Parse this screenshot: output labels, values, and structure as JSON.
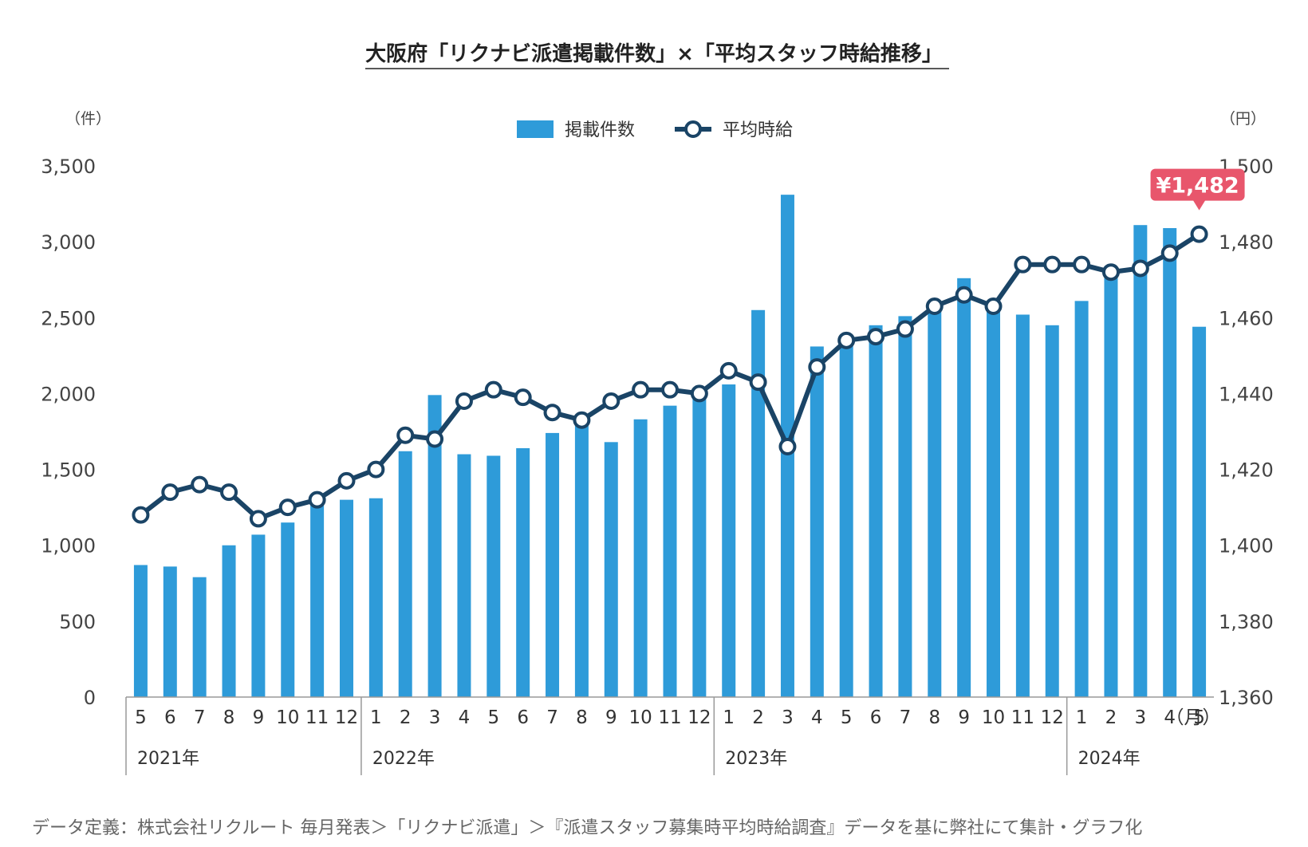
{
  "title": "大阪府「リクナビ派遣掲載件数」×「平均スタッフ時給推移」",
  "footnote": "データ定義：株式会社リクルート 毎月発表＞「リクナビ派遣」＞『派遣スタッフ募集時平均時給調査』データを基に弊社にて集計・グラフ化",
  "colors": {
    "bar": "#2e9bd9",
    "line": "#1a4466",
    "callout": "#e8566c"
  },
  "chart_data": {
    "type": "bar+line",
    "left_axis": {
      "unit": "（件）",
      "min": 0,
      "max": 3500,
      "ticks": [
        "0",
        "500",
        "1,000",
        "1,500",
        "2,000",
        "2,500",
        "3,000",
        "3,500"
      ]
    },
    "right_axis": {
      "unit": "（円）",
      "min": 1360,
      "max": 1500,
      "ticks": [
        "1,360",
        "1,380",
        "1,400",
        "1,420",
        "1,440",
        "1,460",
        "1,480",
        "1,500"
      ]
    },
    "month_unit": "（月）",
    "months": [
      "5",
      "6",
      "7",
      "8",
      "9",
      "10",
      "11",
      "12",
      "1",
      "2",
      "3",
      "4",
      "5",
      "6",
      "7",
      "8",
      "9",
      "10",
      "11",
      "12",
      "1",
      "2",
      "3",
      "4",
      "5",
      "6",
      "7",
      "8",
      "9",
      "10",
      "11",
      "12",
      "1",
      "2",
      "3",
      "4",
      "5"
    ],
    "years": [
      {
        "label": "2021年",
        "start": 0,
        "count": 8
      },
      {
        "label": "2022年",
        "start": 8,
        "count": 12
      },
      {
        "label": "2023年",
        "start": 20,
        "count": 12
      },
      {
        "label": "2024年",
        "start": 32,
        "count": 5
      }
    ],
    "series": [
      {
        "name": "掲載件数",
        "type": "bar",
        "axis": "left",
        "values": [
          870,
          860,
          790,
          1000,
          1070,
          1150,
          1270,
          1300,
          1310,
          1620,
          1990,
          1600,
          1590,
          1640,
          1740,
          1800,
          1680,
          1830,
          1920,
          2000,
          2060,
          2550,
          3310,
          2310,
          2340,
          2450,
          2510,
          2590,
          2760,
          2600,
          2520,
          2450,
          2610,
          2780,
          3110,
          3090,
          2440
        ]
      },
      {
        "name": "平均時給",
        "type": "line",
        "axis": "right",
        "values": [
          1408,
          1414,
          1416,
          1414,
          1407,
          1410,
          1412,
          1417,
          1420,
          1429,
          1428,
          1438,
          1441,
          1439,
          1435,
          1433,
          1438,
          1441,
          1441,
          1440,
          1446,
          1443,
          1426,
          1447,
          1454,
          1455,
          1457,
          1463,
          1466,
          1463,
          1474,
          1474,
          1474,
          1472,
          1473,
          1477,
          1482
        ]
      }
    ],
    "callout": {
      "text": "¥1,482",
      "index": 36
    }
  }
}
